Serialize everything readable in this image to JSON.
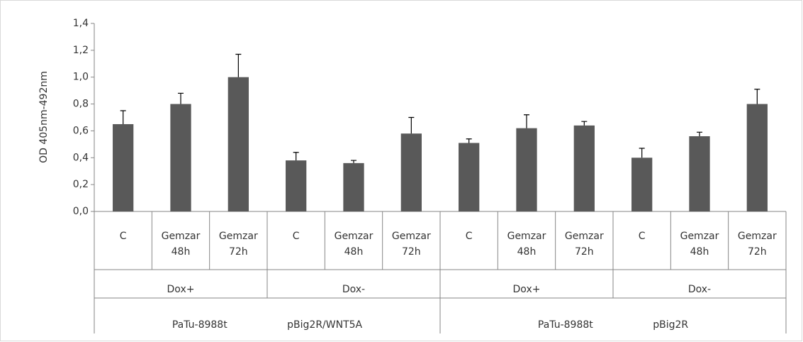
{
  "chart_data": {
    "type": "bar",
    "y_label": "OD 405nm-492nm",
    "category_groups": [
      {
        "label": "PaTu-8988t pBig2R/WNT5A",
        "subgroups": [
          {
            "label": "Dox+",
            "categories": [
              "C",
              "Gemzar 48h",
              "Gemzar 72h"
            ]
          },
          {
            "label": "Dox-",
            "categories": [
              "C",
              "Gemzar 48h",
              "Gemzar 72h"
            ]
          }
        ]
      },
      {
        "label": "PaTu-8988t pBig2R",
        "subgroups": [
          {
            "label": "Dox+",
            "categories": [
              "C",
              "Gemzar 48h",
              "Gemzar 72h"
            ]
          },
          {
            "label": "Dox-",
            "categories": [
              "C",
              "Gemzar 48h",
              "Gemzar 72h"
            ]
          }
        ]
      }
    ],
    "series": [
      {
        "color": "#595959",
        "values": [
          0.65,
          0.8,
          1.0,
          0.38,
          0.36,
          0.58,
          0.51,
          0.62,
          0.64,
          0.4,
          0.56,
          0.8
        ],
        "errors": [
          0.1,
          0.08,
          0.17,
          0.06,
          0.02,
          0.12,
          0.03,
          0.1,
          0.03,
          0.07,
          0.03,
          0.11
        ]
      }
    ],
    "ylim": [
      0,
      1.4
    ],
    "yticks": [
      {
        "value": 0,
        "label": "0,0"
      },
      {
        "value": 0.2,
        "label": "0,2"
      },
      {
        "value": 0.4,
        "label": "0,4"
      },
      {
        "value": 0.6,
        "label": "0,6"
      },
      {
        "value": 0.8,
        "label": "0,8"
      },
      {
        "value": 1.0,
        "label": "1,0"
      },
      {
        "value": 1.2,
        "label": "1,2"
      },
      {
        "value": 1.4,
        "label": "1,4"
      }
    ]
  }
}
